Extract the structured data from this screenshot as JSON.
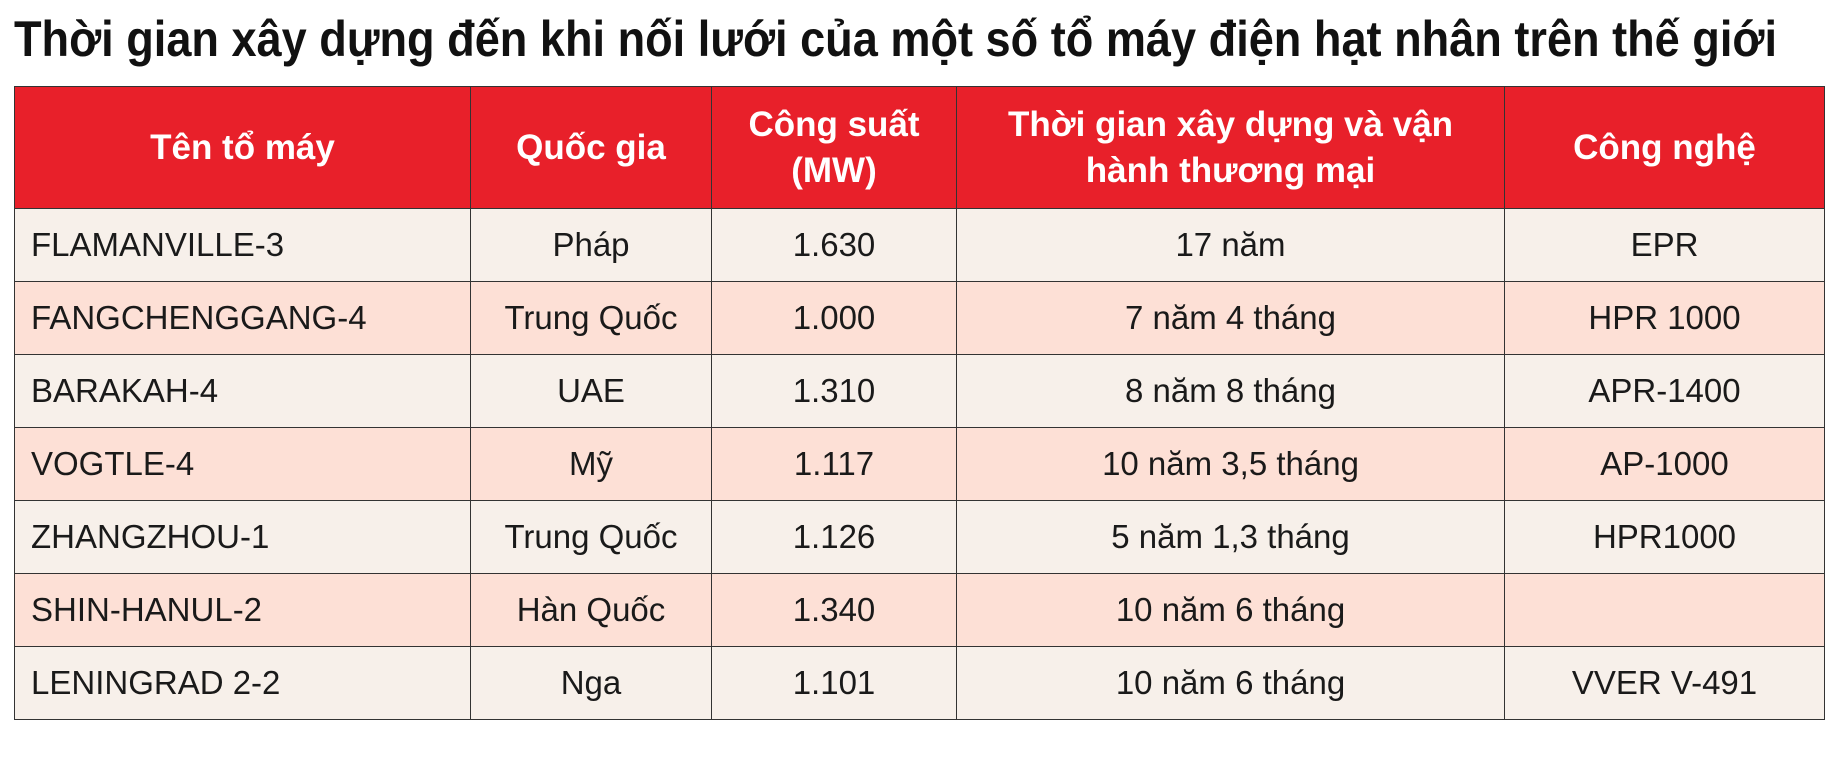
{
  "header": {
    "title": "Thời gian xây dựng đến khi nối lưới của một số tổ máy điện hạt nhân trên thế giới"
  },
  "table": {
    "columns": [
      "Tên tổ máy",
      "Quốc gia",
      "Công suất (MW)",
      "Thời gian xây dựng và vận hành thương mại",
      "Công nghệ"
    ],
    "rows": [
      [
        "FLAMANVILLE-3",
        "Pháp",
        "1.630",
        "17 năm",
        "EPR"
      ],
      [
        "FANGCHENGGANG-4",
        "Trung Quốc",
        "1.000",
        "7 năm 4 tháng",
        "HPR 1000"
      ],
      [
        "BARAKAH-4",
        "UAE",
        "1.310",
        "8 năm 8 tháng",
        "APR-1400"
      ],
      [
        "VOGTLE-4",
        "Mỹ",
        "1.117",
        "10 năm 3,5 tháng",
        "AP-1000"
      ],
      [
        "ZHANGZHOU-1",
        "Trung Quốc",
        "1.126",
        "5 năm 1,3 tháng",
        "HPR1000"
      ],
      [
        "SHIN-HANUL-2",
        "Hàn Quốc",
        "1.340",
        "10 năm 6 tháng",
        null
      ],
      [
        "LENINGRAD 2-2",
        "Nga",
        "1.101",
        "10 năm 6 tháng",
        "VVER V-491"
      ]
    ]
  }
}
